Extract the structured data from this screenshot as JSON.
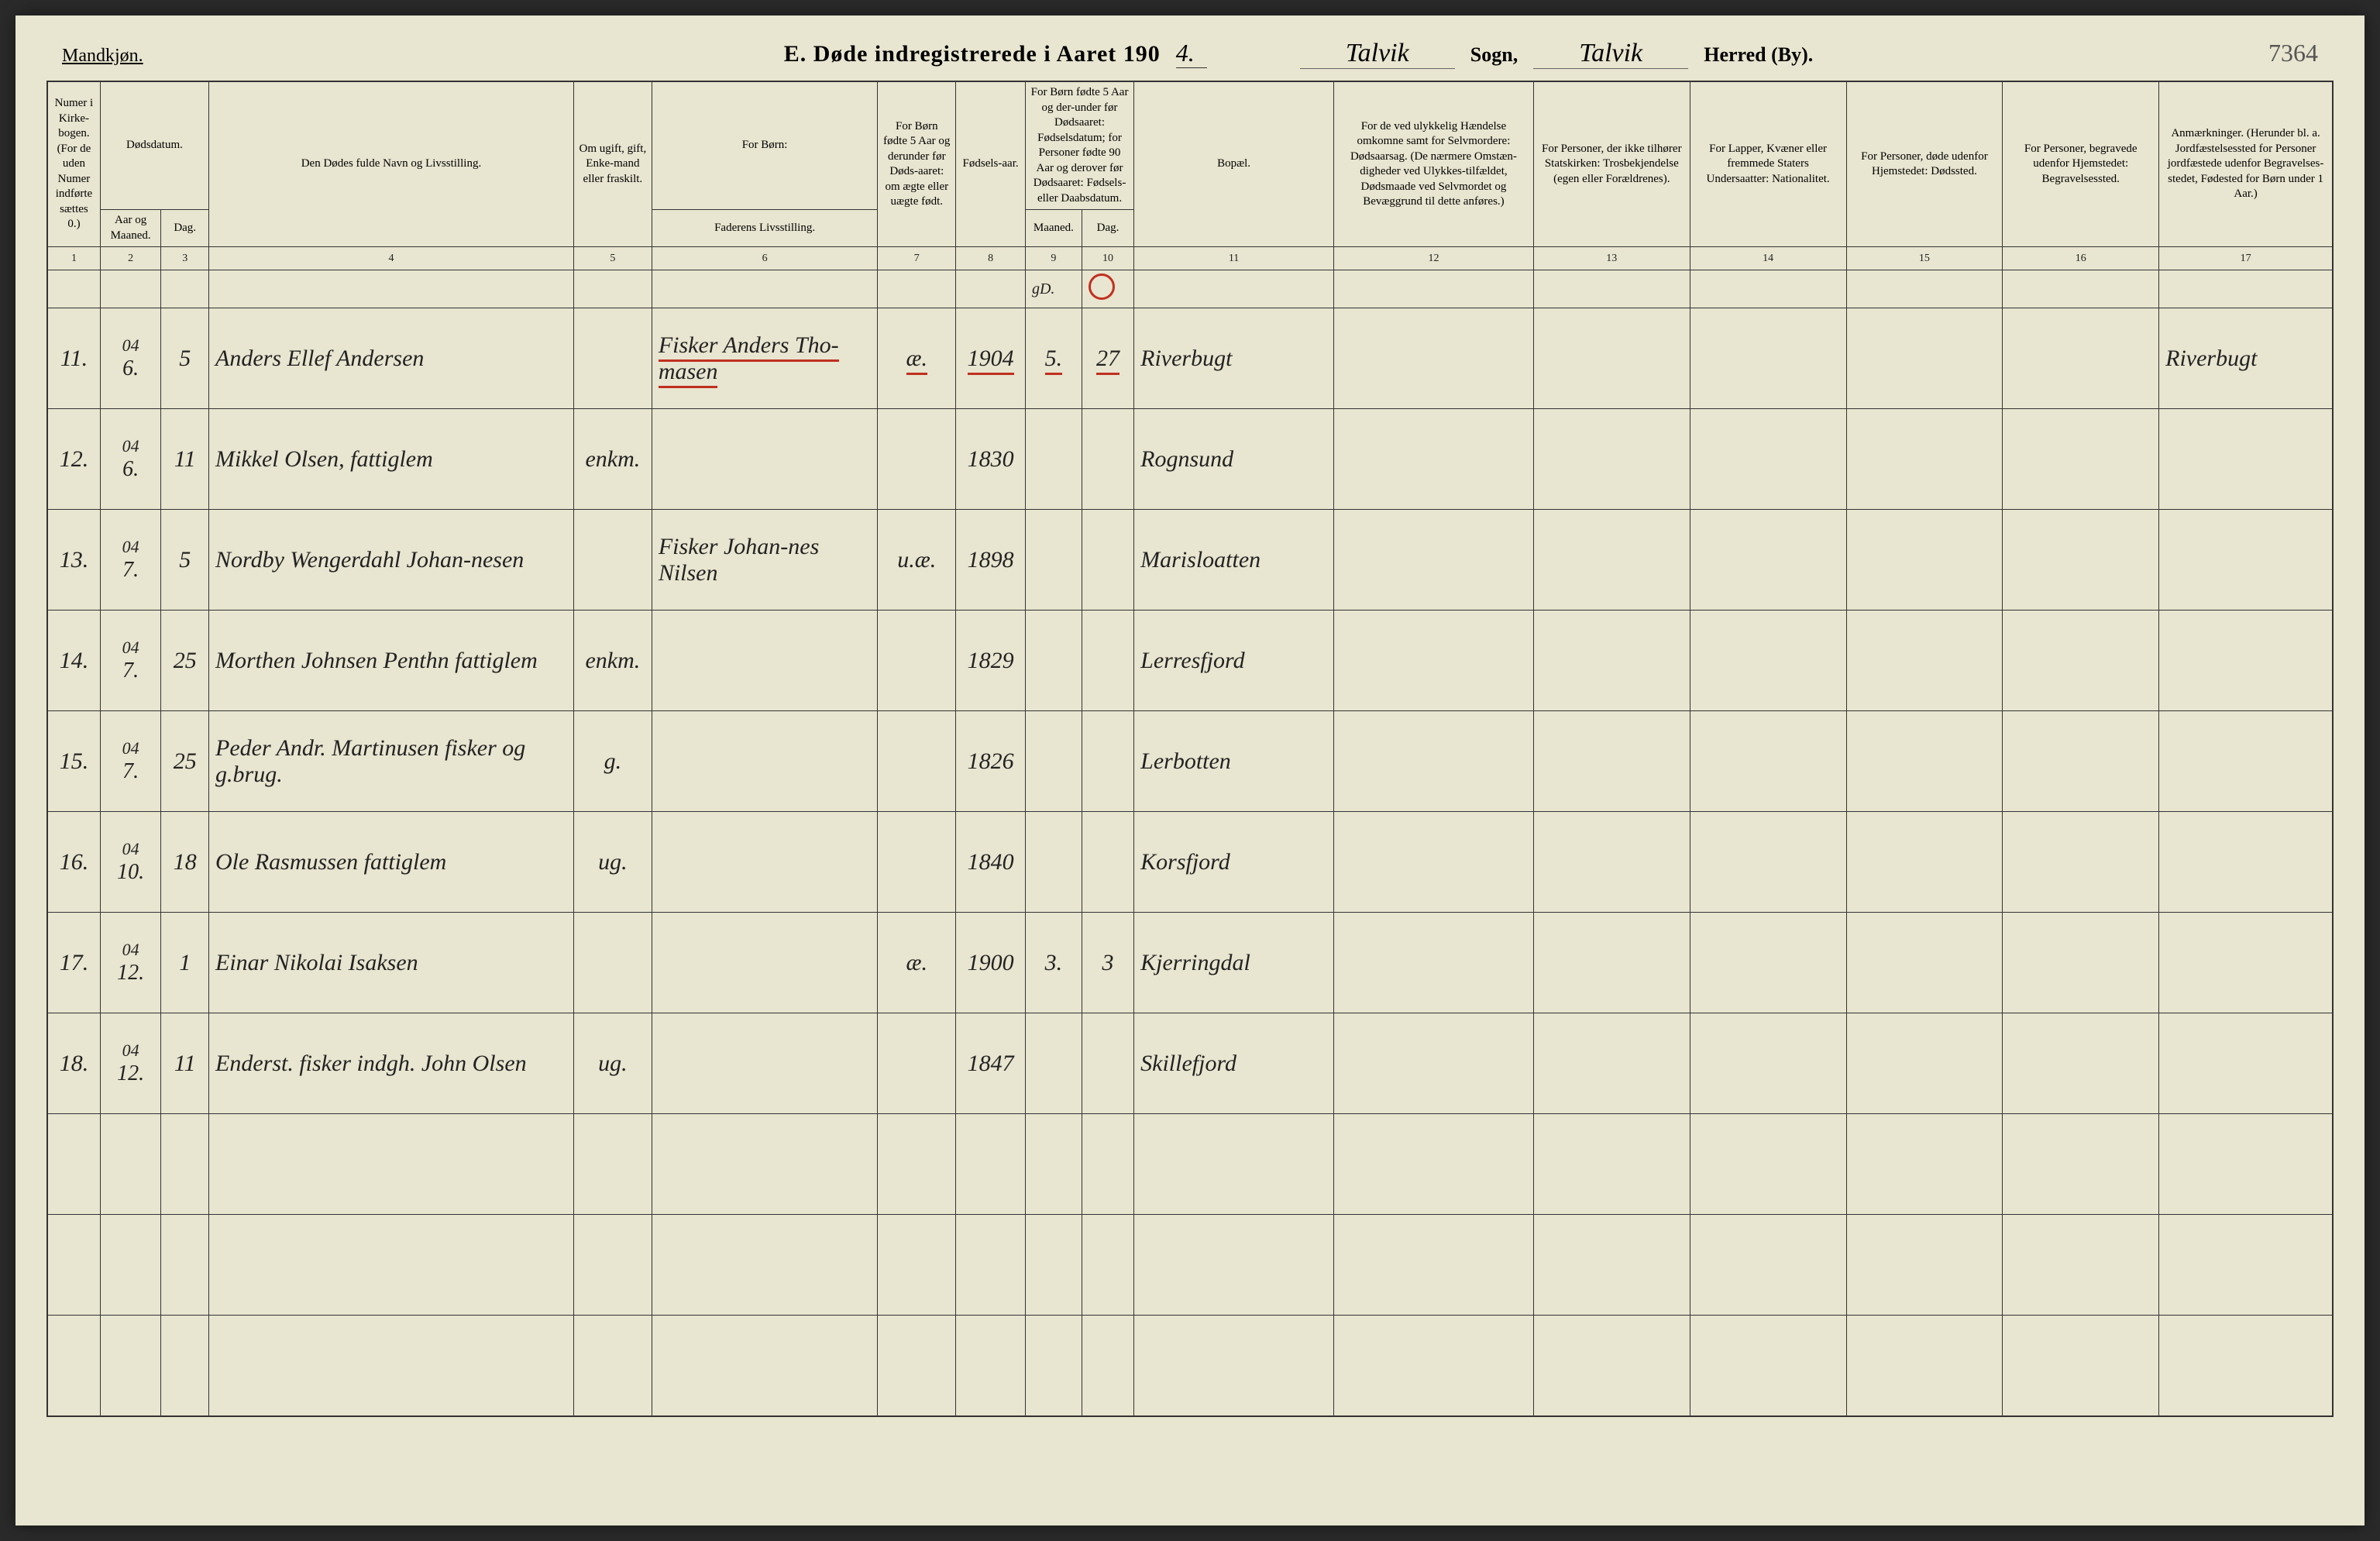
{
  "page_number": "7364",
  "header": {
    "gender": "Mandkjøn.",
    "title_prefix": "E.  Døde indregistrerede i Aaret 190",
    "year_suffix": "4.",
    "parish_value": "Talvik",
    "parish_label": "Sogn,",
    "district_value": "Talvik",
    "district_label": "Herred (By)."
  },
  "columns": {
    "c1": "Numer i Kirke-bogen. (For de uden Numer indførte sættes 0.)",
    "c2a": "Dødsdatum.",
    "c2b": "Aar og Maaned.",
    "c3": "Dag.",
    "c4": "Den Dødes fulde Navn og Livsstilling.",
    "c5": "Om ugift, gift, Enke-mand eller fraskilt.",
    "c6a": "For Børn:",
    "c6b": "Faderens Livsstilling.",
    "c7": "For Børn fødte 5 Aar og derunder før Døds-aaret: om ægte eller uægte født.",
    "c8": "Fødsels-aar.",
    "c9a": "For Børn fødte 5 Aar og der-under før Dødsaaret: Fødselsdatum; for Personer fødte 90 Aar og derover før Dødsaaret: Fødsels- eller Daabsdatum.",
    "c9b": "Maaned.",
    "c10": "Dag.",
    "c11": "Bopæl.",
    "c12": "For de ved ulykkelig Hændelse omkomne samt for Selvmordere: Dødsaarsag. (De nærmere Omstæn-digheder ved Ulykkes-tilfældet, Dødsmaade ved Selvmordet og Bevæggrund til dette anføres.)",
    "c13": "For Personer, der ikke tilhører Statskirken: Trosbekjendelse (egen eller Forældrenes).",
    "c14": "For Lapper, Kvæner eller fremmede Staters Undersaatter: Nationalitet.",
    "c15": "For Personer, døde udenfor Hjemstedet: Dødssted.",
    "c16": "For Personer, begravede udenfor Hjemstedet: Begravelsessted.",
    "c17": "Anmærkninger. (Herunder bl. a. Jordfæstelsessted for Personer jordfæstede udenfor Begravelses-stedet, Fødested for Børn under 1 Aar.)"
  },
  "colnums": [
    "1",
    "2",
    "3",
    "4",
    "5",
    "6",
    "7",
    "8",
    "9",
    "10",
    "11",
    "12",
    "13",
    "14",
    "15",
    "16",
    "17"
  ],
  "annotation": {
    "c9": "gD.",
    "c10_circle": true
  },
  "rows": [
    {
      "n": "11.",
      "ym": "04\n6.",
      "d": "5",
      "name": "Anders Ellef Andersen",
      "status": "",
      "father": "Fisker Anders Tho-masen",
      "legit": "æ.",
      "byear": "1904",
      "bm": "5.",
      "bd": "27",
      "res": "Riverbugt",
      "remarks": "Riverbugt",
      "red": true
    },
    {
      "n": "12.",
      "ym": "04\n6.",
      "d": "11",
      "name": "Mikkel Olsen, fattiglem",
      "status": "enkm.",
      "father": "",
      "legit": "",
      "byear": "1830",
      "bm": "",
      "bd": "",
      "res": "Rognsund",
      "remarks": ""
    },
    {
      "n": "13.",
      "ym": "04\n7.",
      "d": "5",
      "name": "Nordby Wengerdahl Johan-nesen",
      "status": "",
      "father": "Fisker Johan-nes Nilsen",
      "legit": "u.æ.",
      "byear": "1898",
      "bm": "",
      "bd": "",
      "res": "Marisloatten",
      "remarks": ""
    },
    {
      "n": "14.",
      "ym": "04\n7.",
      "d": "25",
      "name": "Morthen Johnsen Penthn fattiglem",
      "status": "enkm.",
      "father": "",
      "legit": "",
      "byear": "1829",
      "bm": "",
      "bd": "",
      "res": "Lerresfjord",
      "remarks": ""
    },
    {
      "n": "15.",
      "ym": "04\n7.",
      "d": "25",
      "name": "Peder Andr. Martinusen fisker og g.brug.",
      "status": "g.",
      "father": "",
      "legit": "",
      "byear": "1826",
      "bm": "",
      "bd": "",
      "res": "Lerbotten",
      "remarks": ""
    },
    {
      "n": "16.",
      "ym": "04\n10.",
      "d": "18",
      "name": "Ole Rasmussen fattiglem",
      "status": "ug.",
      "father": "",
      "legit": "",
      "byear": "1840",
      "bm": "",
      "bd": "",
      "res": "Korsfjord",
      "remarks": ""
    },
    {
      "n": "17.",
      "ym": "04\n12.",
      "d": "1",
      "name": "Einar Nikolai Isaksen",
      "status": "",
      "father": "",
      "legit": "æ.",
      "byear": "1900",
      "bm": "3.",
      "bd": "3",
      "res": "Kjerringdal",
      "remarks": ""
    },
    {
      "n": "18.",
      "ym": "04\n12.",
      "d": "11",
      "name": "Enderst. fisker indgh. John Olsen",
      "status": "ug.",
      "father": "",
      "legit": "",
      "byear": "1847",
      "bm": "",
      "bd": "",
      "res": "Skillefjord",
      "remarks": ""
    }
  ],
  "blank_rows": 3,
  "styling": {
    "page_bg": "#e8e5d0",
    "border_color": "#333333",
    "red": "#c03020",
    "cursive_color": "#222222",
    "header_fontsize": 15,
    "data_fontsize": 30
  }
}
